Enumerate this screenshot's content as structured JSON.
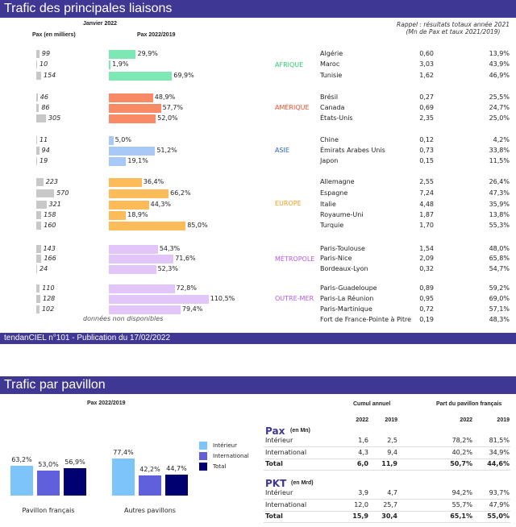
{
  "section1": {
    "title": "Trafic des principales liaisons",
    "period": "Janvier 2022",
    "col_pax": "Pax (en milliers)",
    "col_ratio": "Pax 2022/2019",
    "rappel_line1": "Rappel : résultats totaux année 2021",
    "rappel_line2": "(Mn de Pax et taux 2021/2019)",
    "na_note": "données non disponibles",
    "footer": "tendanCIEL n°101 - Publication du 17/02/2022"
  },
  "chart_data": [
    {
      "type": "bar",
      "title": "Pax 2022/2019",
      "regions": [
        {
          "name": "AFRIQUE",
          "color": "#7de8b4",
          "label_color": "#2ecc71",
          "routes": [
            {
              "name": "Algérie",
              "pax_k": 99,
              "ratio": "29,9%",
              "ratio_v": 29.9,
              "y2021": "0,60",
              "r2021": "13,9%"
            },
            {
              "name": "Maroc",
              "pax_k": 10,
              "ratio": "1,9%",
              "ratio_v": 1.9,
              "y2021": "3,03",
              "r2021": "43,9%"
            },
            {
              "name": "Tunisie",
              "pax_k": 154,
              "ratio": "69,9%",
              "ratio_v": 69.9,
              "y2021": "1,62",
              "r2021": "46,9%"
            }
          ]
        },
        {
          "name": "AMÉRIQUE",
          "color": "#f98a66",
          "label_color": "#f0502a",
          "routes": [
            {
              "name": "Brésil",
              "pax_k": 46,
              "ratio": "48,9%",
              "ratio_v": 48.9,
              "y2021": "0,27",
              "r2021": "25,5%"
            },
            {
              "name": "Canada",
              "pax_k": 86,
              "ratio": "57,7%",
              "ratio_v": 57.7,
              "y2021": "0,69",
              "r2021": "24,7%"
            },
            {
              "name": "États-Unis",
              "pax_k": 305,
              "ratio": "52,0%",
              "ratio_v": 52.0,
              "y2021": "2,35",
              "r2021": "25,0%"
            }
          ]
        },
        {
          "name": "ASIE",
          "color": "#a8c8f8",
          "label_color": "#2a5fd8",
          "routes": [
            {
              "name": "Chine",
              "pax_k": 11,
              "ratio": "5,0%",
              "ratio_v": 5.0,
              "y2021": "0,12",
              "r2021": "4,2%"
            },
            {
              "name": "Émirats Arabes Unis",
              "pax_k": 94,
              "ratio": "51,2%",
              "ratio_v": 51.2,
              "y2021": "0,73",
              "r2021": "33,8%"
            },
            {
              "name": "Japon",
              "pax_k": 19,
              "ratio": "19,1%",
              "ratio_v": 19.1,
              "y2021": "0,15",
              "r2021": "11,5%"
            }
          ]
        },
        {
          "name": "EUROPE",
          "color": "#fdbb5a",
          "label_color": "#f59a10",
          "routes": [
            {
              "name": "Allemagne",
              "pax_k": 223,
              "ratio": "36,4%",
              "ratio_v": 36.4,
              "y2021": "2,55",
              "r2021": "26,4%"
            },
            {
              "name": "Espagne",
              "pax_k": 570,
              "ratio": "66,2%",
              "ratio_v": 66.2,
              "y2021": "7,24",
              "r2021": "47,3%"
            },
            {
              "name": "Italie",
              "pax_k": 321,
              "ratio": "44,3%",
              "ratio_v": 44.3,
              "y2021": "4,48",
              "r2021": "35,9%"
            },
            {
              "name": "Royaume-Uni",
              "pax_k": 158,
              "ratio": "18,9%",
              "ratio_v": 18.9,
              "y2021": "1,87",
              "r2021": "13,8%"
            },
            {
              "name": "Turquie",
              "pax_k": 160,
              "ratio": "85,0%",
              "ratio_v": 85.0,
              "y2021": "1,70",
              "r2021": "55,3%"
            }
          ]
        },
        {
          "name": "MÉTROPOLE",
          "color": "#e2c6fa",
          "label_color": "#b45ae8",
          "routes": [
            {
              "name": "Paris-Toulouse",
              "pax_k": 143,
              "ratio": "54,3%",
              "ratio_v": 54.3,
              "y2021": "1,54",
              "r2021": "48,0%"
            },
            {
              "name": "Paris-Nice",
              "pax_k": 166,
              "ratio": "71,6%",
              "ratio_v": 71.6,
              "y2021": "2,09",
              "r2021": "65,8%"
            },
            {
              "name": "Bordeaux-Lyon",
              "pax_k": 24,
              "ratio": "52,3%",
              "ratio_v": 52.3,
              "y2021": "0,32",
              "r2021": "54,7%"
            }
          ]
        },
        {
          "name": "OUTRE-MER",
          "color": "#e2c6fa",
          "label_color": "#b45ae8",
          "routes": [
            {
              "name": "Paris-Guadeloupe",
              "pax_k": 110,
              "ratio": "72,8%",
              "ratio_v": 72.8,
              "y2021": "0,89",
              "r2021": "59,2%"
            },
            {
              "name": "Paris-La Réunion",
              "pax_k": 128,
              "ratio": "110,5%",
              "ratio_v": 110.5,
              "y2021": "0,95",
              "r2021": "69,0%"
            },
            {
              "name": "Paris-Martinique",
              "pax_k": 102,
              "ratio": "79,4%",
              "ratio_v": 79.4,
              "y2021": "0,72",
              "r2021": "57,1%"
            },
            {
              "name": "Fort de France-Pointe à Pitre",
              "pax_k": null,
              "ratio": null,
              "ratio_v": null,
              "y2021": "0,19",
              "r2021": "48,3%"
            }
          ]
        }
      ]
    },
    {
      "type": "bar",
      "title": "Pax 2022/2019",
      "categories": [
        "Pavillon français",
        "Autres pavillons"
      ],
      "series": [
        {
          "name": "Intérieur",
          "color": "#7dc4fb",
          "values": [
            63.2,
            77.4
          ],
          "labels": [
            "63,2%",
            "77,4%"
          ]
        },
        {
          "name": "International",
          "color": "#6060dc",
          "values": [
            53.0,
            42.2
          ],
          "labels": [
            "53,0%",
            "42,2%"
          ]
        },
        {
          "name": "Total",
          "color": "#000070",
          "values": [
            56.9,
            44.7
          ],
          "labels": [
            "56,9%",
            "44,7%"
          ]
        }
      ],
      "legend": "right"
    }
  ],
  "section2": {
    "title": "Trafic par pavillon",
    "chart_title": "Pax 2022/2019",
    "table": {
      "cumul": "Cumul annuel",
      "part": "Part du pavillon français",
      "years": [
        "2022",
        "2019",
        "2022",
        "2019"
      ],
      "groups": [
        {
          "title": "Pax",
          "unit": "(en Mn)",
          "rows": [
            {
              "label": "Intérieur",
              "v": [
                "1,6",
                "2,5",
                "78,2%",
                "81,5%"
              ]
            },
            {
              "label": "International",
              "v": [
                "4,3",
                "9,4",
                "40,2%",
                "34,9%"
              ]
            },
            {
              "label": "Total",
              "v": [
                "6,0",
                "11,9",
                "50,7%",
                "44,6%"
              ]
            }
          ]
        },
        {
          "title": "PKT",
          "unit": "(en Mrd)",
          "rows": [
            {
              "label": "Intérieur",
              "v": [
                "3,9",
                "4,7",
                "94,2%",
                "93,7%"
              ]
            },
            {
              "label": "International",
              "v": [
                "12,0",
                "25,7",
                "55,7%",
                "47,9%"
              ]
            },
            {
              "label": "Total",
              "v": [
                "15,9",
                "30,4",
                "65,1%",
                "55,0%"
              ]
            }
          ]
        }
      ]
    }
  }
}
